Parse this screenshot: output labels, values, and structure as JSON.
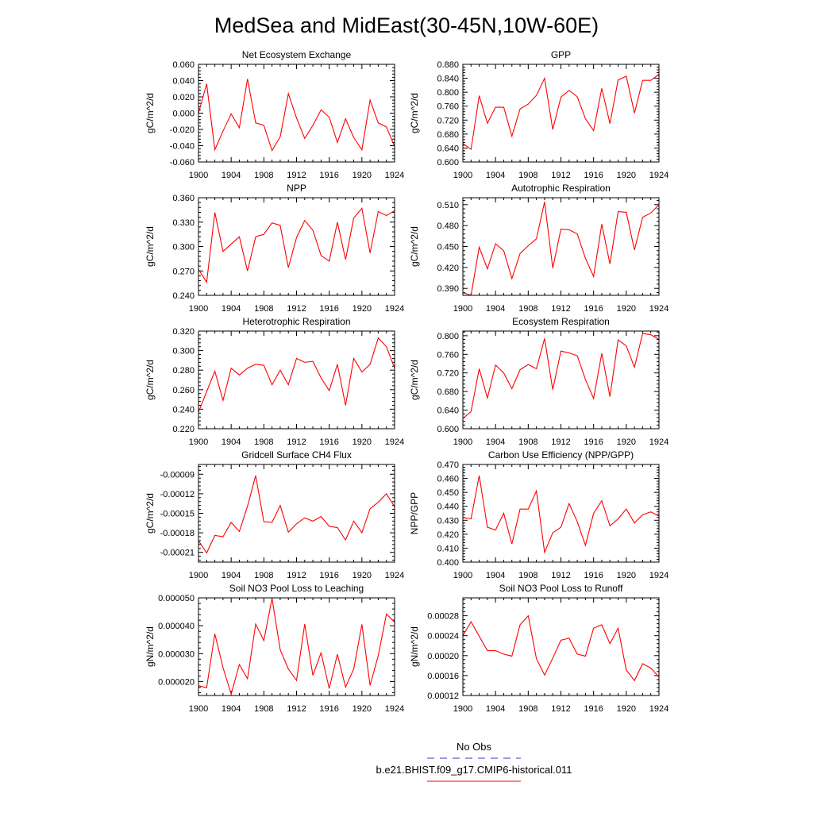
{
  "figure": {
    "title": "MedSea and MidEast(30-45N,10W-60E)",
    "line_color": "#ff0000",
    "obs_color": "#3333cc",
    "legend": {
      "obs_label": "No Obs",
      "model_label": "b.e21.BHIST.f09_g17.CMIP6-historical.011"
    }
  },
  "chart_data": [
    {
      "type": "line",
      "title": "Net Ecosystem Exchange",
      "xlabel": "",
      "ylabel": "gC/m^2/d",
      "xlim": [
        1900,
        1924
      ],
      "ylim": [
        -0.06,
        0.06
      ],
      "xticks": [
        "1900",
        "1904",
        "1908",
        "1912",
        "1916",
        "1920",
        "1924"
      ],
      "yticks": [
        "-0.060",
        "-0.040",
        "-0.020",
        "0.000",
        "0.020",
        "0.040",
        "0.060"
      ],
      "x": [
        1900,
        1901,
        1902,
        1903,
        1904,
        1905,
        1906,
        1907,
        1908,
        1909,
        1910,
        1911,
        1912,
        1913,
        1914,
        1915,
        1916,
        1917,
        1918,
        1919,
        1920,
        1921,
        1922,
        1923,
        1924
      ],
      "series": [
        {
          "values": [
            0.0,
            0.036,
            -0.045,
            -0.022,
            -0.001,
            -0.018,
            0.042,
            -0.012,
            -0.015,
            -0.046,
            -0.029,
            0.024,
            -0.006,
            -0.031,
            -0.015,
            0.004,
            -0.005,
            -0.036,
            -0.007,
            -0.03,
            -0.045,
            0.016,
            -0.012,
            -0.017,
            -0.041
          ]
        }
      ]
    },
    {
      "type": "line",
      "title": "GPP",
      "xlabel": "",
      "ylabel": "gC/m^2/d",
      "xlim": [
        1900,
        1924
      ],
      "ylim": [
        0.6,
        0.88
      ],
      "xticks": [
        "1900",
        "1904",
        "1908",
        "1912",
        "1916",
        "1920",
        "1924"
      ],
      "yticks": [
        "0.600",
        "0.640",
        "0.680",
        "0.720",
        "0.760",
        "0.800",
        "0.840",
        "0.880"
      ],
      "x": [
        1900,
        1901,
        1902,
        1903,
        1904,
        1905,
        1906,
        1907,
        1908,
        1909,
        1910,
        1911,
        1912,
        1913,
        1914,
        1915,
        1916,
        1917,
        1918,
        1919,
        1920,
        1921,
        1922,
        1923,
        1924
      ],
      "series": [
        {
          "values": [
            0.653,
            0.636,
            0.79,
            0.711,
            0.757,
            0.757,
            0.674,
            0.752,
            0.766,
            0.791,
            0.84,
            0.693,
            0.786,
            0.805,
            0.787,
            0.724,
            0.69,
            0.811,
            0.71,
            0.835,
            0.846,
            0.74,
            0.834,
            0.834,
            0.851
          ]
        }
      ]
    },
    {
      "type": "line",
      "title": "NPP",
      "xlabel": "",
      "ylabel": "gC/m^2/d",
      "xlim": [
        1900,
        1924
      ],
      "ylim": [
        0.24,
        0.36
      ],
      "xticks": [
        "1900",
        "1904",
        "1908",
        "1912",
        "1916",
        "1920",
        "1924"
      ],
      "yticks": [
        "0.240",
        "0.270",
        "0.300",
        "0.330",
        "0.360"
      ],
      "x": [
        1900,
        1901,
        1902,
        1903,
        1904,
        1905,
        1906,
        1907,
        1908,
        1909,
        1910,
        1911,
        1912,
        1913,
        1914,
        1915,
        1916,
        1917,
        1918,
        1919,
        1920,
        1921,
        1922,
        1923,
        1924
      ],
      "series": [
        {
          "values": [
            0.272,
            0.256,
            0.342,
            0.294,
            0.303,
            0.312,
            0.27,
            0.312,
            0.315,
            0.329,
            0.326,
            0.274,
            0.311,
            0.332,
            0.32,
            0.289,
            0.282,
            0.33,
            0.284,
            0.335,
            0.347,
            0.292,
            0.343,
            0.338,
            0.344
          ]
        }
      ]
    },
    {
      "type": "line",
      "title": "Autotrophic Respiration",
      "xlabel": "",
      "ylabel": "gC/m^2/d",
      "xlim": [
        1900,
        1924
      ],
      "ylim": [
        0.38,
        0.52
      ],
      "xticks": [
        "1900",
        "1904",
        "1908",
        "1912",
        "1916",
        "1920",
        "1924"
      ],
      "yticks": [
        "0.390",
        "0.420",
        "0.450",
        "0.480",
        "0.510"
      ],
      "x": [
        1900,
        1901,
        1902,
        1903,
        1904,
        1905,
        1906,
        1907,
        1908,
        1909,
        1910,
        1911,
        1912,
        1913,
        1914,
        1915,
        1916,
        1917,
        1918,
        1919,
        1920,
        1921,
        1922,
        1923,
        1924
      ],
      "series": [
        {
          "values": [
            0.384,
            0.38,
            0.449,
            0.418,
            0.454,
            0.444,
            0.404,
            0.44,
            0.451,
            0.461,
            0.514,
            0.419,
            0.475,
            0.474,
            0.468,
            0.433,
            0.407,
            0.482,
            0.425,
            0.5,
            0.499,
            0.445,
            0.492,
            0.498,
            0.51
          ]
        }
      ]
    },
    {
      "type": "line",
      "title": "Heterotrophic Respiration",
      "xlabel": "",
      "ylabel": "gC/m^2/d",
      "xlim": [
        1900,
        1924
      ],
      "ylim": [
        0.22,
        0.32
      ],
      "xticks": [
        "1900",
        "1904",
        "1908",
        "1912",
        "1916",
        "1920",
        "1924"
      ],
      "yticks": [
        "0.220",
        "0.240",
        "0.260",
        "0.280",
        "0.300",
        "0.320"
      ],
      "x": [
        1900,
        1901,
        1902,
        1903,
        1904,
        1905,
        1906,
        1907,
        1908,
        1909,
        1910,
        1911,
        1912,
        1913,
        1914,
        1915,
        1916,
        1917,
        1918,
        1919,
        1920,
        1921,
        1922,
        1923,
        1924
      ],
      "series": [
        {
          "values": [
            0.237,
            0.258,
            0.279,
            0.249,
            0.282,
            0.275,
            0.282,
            0.286,
            0.285,
            0.265,
            0.28,
            0.265,
            0.292,
            0.288,
            0.289,
            0.272,
            0.259,
            0.286,
            0.244,
            0.292,
            0.278,
            0.286,
            0.313,
            0.304,
            0.282
          ]
        }
      ]
    },
    {
      "type": "line",
      "title": "Ecosystem Respiration",
      "xlabel": "",
      "ylabel": "gC/m^2/d",
      "xlim": [
        1900,
        1924
      ],
      "ylim": [
        0.6,
        0.81
      ],
      "xticks": [
        "1900",
        "1904",
        "1908",
        "1912",
        "1916",
        "1920",
        "1924"
      ],
      "yticks": [
        "0.600",
        "0.640",
        "0.680",
        "0.720",
        "0.760",
        "0.800"
      ],
      "x": [
        1900,
        1901,
        1902,
        1903,
        1904,
        1905,
        1906,
        1907,
        1908,
        1909,
        1910,
        1911,
        1912,
        1913,
        1914,
        1915,
        1916,
        1917,
        1918,
        1919,
        1920,
        1921,
        1922,
        1923,
        1924
      ],
      "series": [
        {
          "values": [
            0.622,
            0.637,
            0.729,
            0.666,
            0.737,
            0.72,
            0.686,
            0.727,
            0.738,
            0.729,
            0.794,
            0.684,
            0.767,
            0.763,
            0.757,
            0.706,
            0.665,
            0.762,
            0.669,
            0.791,
            0.778,
            0.732,
            0.805,
            0.802,
            0.792
          ]
        }
      ]
    },
    {
      "type": "line",
      "title": "Gridcell Surface CH4 Flux",
      "xlabel": "",
      "ylabel": "gC/m^2/d",
      "xlim": [
        1900,
        1924
      ],
      "ylim": [
        -0.000225,
        -7.5e-05
      ],
      "xticks": [
        "1900",
        "1904",
        "1908",
        "1912",
        "1916",
        "1920",
        "1924"
      ],
      "yticks": [
        "-0.00021",
        "-0.00018",
        "-0.00015",
        "-0.00012",
        "-0.00009"
      ],
      "x": [
        1900,
        1901,
        1902,
        1903,
        1904,
        1905,
        1906,
        1907,
        1908,
        1909,
        1910,
        1911,
        1912,
        1913,
        1914,
        1915,
        1916,
        1917,
        1918,
        1919,
        1920,
        1921,
        1922,
        1923,
        1924
      ],
      "series": [
        {
          "values": [
            -0.000192,
            -0.000211,
            -0.000184,
            -0.000186,
            -0.000164,
            -0.000178,
            -0.000139,
            -9.2e-05,
            -0.000163,
            -0.000164,
            -0.000138,
            -0.000179,
            -0.000166,
            -0.000157,
            -0.000162,
            -0.000155,
            -0.00017,
            -0.000172,
            -0.000191,
            -0.000162,
            -0.00018,
            -0.000143,
            -0.000133,
            -0.00012,
            -0.00014
          ]
        }
      ]
    },
    {
      "type": "line",
      "title": "Carbon Use Efficiency (NPP/GPP)",
      "xlabel": "",
      "ylabel": "NPP/GPP",
      "xlim": [
        1900,
        1924
      ],
      "ylim": [
        0.4,
        0.47
      ],
      "xticks": [
        "1900",
        "1904",
        "1908",
        "1912",
        "1916",
        "1920",
        "1924"
      ],
      "yticks": [
        "0.400",
        "0.410",
        "0.420",
        "0.430",
        "0.440",
        "0.450",
        "0.460",
        "0.470"
      ],
      "x": [
        1900,
        1901,
        1902,
        1903,
        1904,
        1905,
        1906,
        1907,
        1908,
        1909,
        1910,
        1911,
        1912,
        1913,
        1914,
        1915,
        1916,
        1917,
        1918,
        1919,
        1920,
        1921,
        1922,
        1923,
        1924
      ],
      "series": [
        {
          "values": [
            0.432,
            0.431,
            0.462,
            0.425,
            0.423,
            0.435,
            0.413,
            0.438,
            0.438,
            0.451,
            0.407,
            0.421,
            0.425,
            0.442,
            0.429,
            0.412,
            0.435,
            0.444,
            0.426,
            0.431,
            0.438,
            0.428,
            0.434,
            0.436,
            0.433
          ]
        }
      ]
    },
    {
      "type": "line",
      "title": "Soil NO3 Pool Loss to Leaching",
      "xlabel": "",
      "ylabel": "gN/m^2/d",
      "xlim": [
        1900,
        1924
      ],
      "ylim": [
        1.5e-05,
        5e-05
      ],
      "xticks": [
        "1900",
        "1904",
        "1908",
        "1912",
        "1916",
        "1920",
        "1924"
      ],
      "yticks": [
        "0.000020",
        "0.000030",
        "0.000040",
        "0.000050"
      ],
      "x": [
        1900,
        1901,
        1902,
        1903,
        1904,
        1905,
        1906,
        1907,
        1908,
        1909,
        1910,
        1911,
        1912,
        1913,
        1914,
        1915,
        1916,
        1917,
        1918,
        1919,
        1920,
        1921,
        1922,
        1923,
        1924
      ],
      "series": [
        {
          "values": [
            1.85e-05,
            1.78e-05,
            3.71e-05,
            2.5e-05,
            1.55e-05,
            2.61e-05,
            2.1e-05,
            4.06e-05,
            3.47e-05,
            4.98e-05,
            3.14e-05,
            2.45e-05,
            2.04e-05,
            4.06e-05,
            2.22e-05,
            3.03e-05,
            1.75e-05,
            2.98e-05,
            1.8e-05,
            2.45e-05,
            4.05e-05,
            1.86e-05,
            2.93e-05,
            4.42e-05,
            4.13e-05
          ]
        }
      ]
    },
    {
      "type": "line",
      "title": "Soil NO3 Pool Loss to Runoff",
      "xlabel": "",
      "ylabel": "gN/m^2/d",
      "xlim": [
        1900,
        1924
      ],
      "ylim": [
        0.00012,
        0.000316
      ],
      "xticks": [
        "1900",
        "1904",
        "1908",
        "1912",
        "1916",
        "1920",
        "1924"
      ],
      "yticks": [
        "0.00012",
        "0.00016",
        "0.00020",
        "0.00024",
        "0.00028"
      ],
      "x": [
        1900,
        1901,
        1902,
        1903,
        1904,
        1905,
        1906,
        1907,
        1908,
        1909,
        1910,
        1911,
        1912,
        1913,
        1914,
        1915,
        1916,
        1917,
        1918,
        1919,
        1920,
        1921,
        1922,
        1923,
        1924
      ],
      "series": [
        {
          "values": [
            0.00024,
            0.000268,
            0.000239,
            0.00021,
            0.00021,
            0.000203,
            0.000199,
            0.000262,
            0.00028,
            0.000194,
            0.000161,
            0.000195,
            0.000231,
            0.000235,
            0.000203,
            0.000199,
            0.000255,
            0.000262,
            0.000224,
            0.000255,
            0.000171,
            0.00015,
            0.000184,
            0.000175,
            0.000157
          ]
        }
      ]
    }
  ]
}
